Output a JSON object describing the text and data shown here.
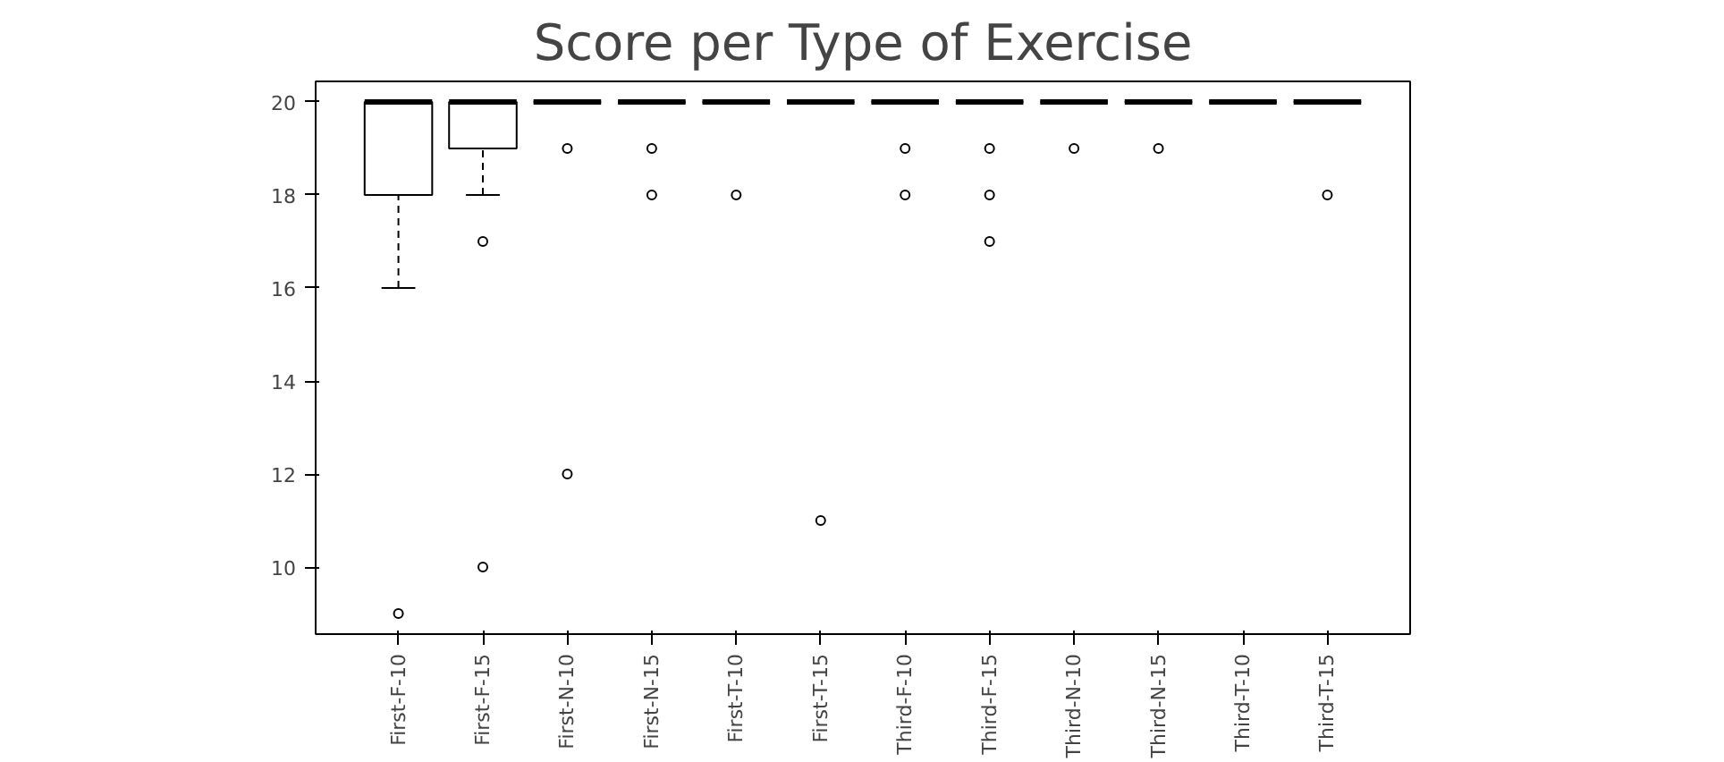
{
  "chart_data": {
    "type": "box",
    "title": "Score per Type of Exercise",
    "categories": [
      "First-F-10",
      "First-F-15",
      "First-N-10",
      "First-N-15",
      "First-T-10",
      "First-T-15",
      "Third-F-10",
      "Third-F-15",
      "Third-N-10",
      "Third-N-15",
      "Third-T-10",
      "Third-T-15"
    ],
    "boxes": [
      {
        "low": 16,
        "q1": 18,
        "median": 20,
        "q3": 20,
        "high": 20,
        "outliers": [
          9
        ]
      },
      {
        "low": 18,
        "q1": 19,
        "median": 20,
        "q3": 20,
        "high": 20,
        "outliers": [
          17,
          10
        ]
      },
      {
        "low": 20,
        "q1": 20,
        "median": 20,
        "q3": 20,
        "high": 20,
        "outliers": [
          19,
          12
        ]
      },
      {
        "low": 20,
        "q1": 20,
        "median": 20,
        "q3": 20,
        "high": 20,
        "outliers": [
          19,
          18
        ]
      },
      {
        "low": 20,
        "q1": 20,
        "median": 20,
        "q3": 20,
        "high": 20,
        "outliers": [
          18
        ]
      },
      {
        "low": 20,
        "q1": 20,
        "median": 20,
        "q3": 20,
        "high": 20,
        "outliers": [
          11
        ]
      },
      {
        "low": 20,
        "q1": 20,
        "median": 20,
        "q3": 20,
        "high": 20,
        "outliers": [
          19,
          18
        ]
      },
      {
        "low": 20,
        "q1": 20,
        "median": 20,
        "q3": 20,
        "high": 20,
        "outliers": [
          19,
          18,
          17
        ]
      },
      {
        "low": 20,
        "q1": 20,
        "median": 20,
        "q3": 20,
        "high": 20,
        "outliers": [
          19
        ]
      },
      {
        "low": 20,
        "q1": 20,
        "median": 20,
        "q3": 20,
        "high": 20,
        "outliers": [
          19
        ]
      },
      {
        "low": 20,
        "q1": 20,
        "median": 20,
        "q3": 20,
        "high": 20
      },
      {
        "low": 20,
        "q1": 20,
        "median": 20,
        "q3": 20,
        "high": 20,
        "outliers": [
          18
        ]
      }
    ],
    "ylim": [
      8.56,
      20.44
    ],
    "yticks": [
      10,
      12,
      14,
      16,
      18,
      20
    ],
    "grid": false
  }
}
